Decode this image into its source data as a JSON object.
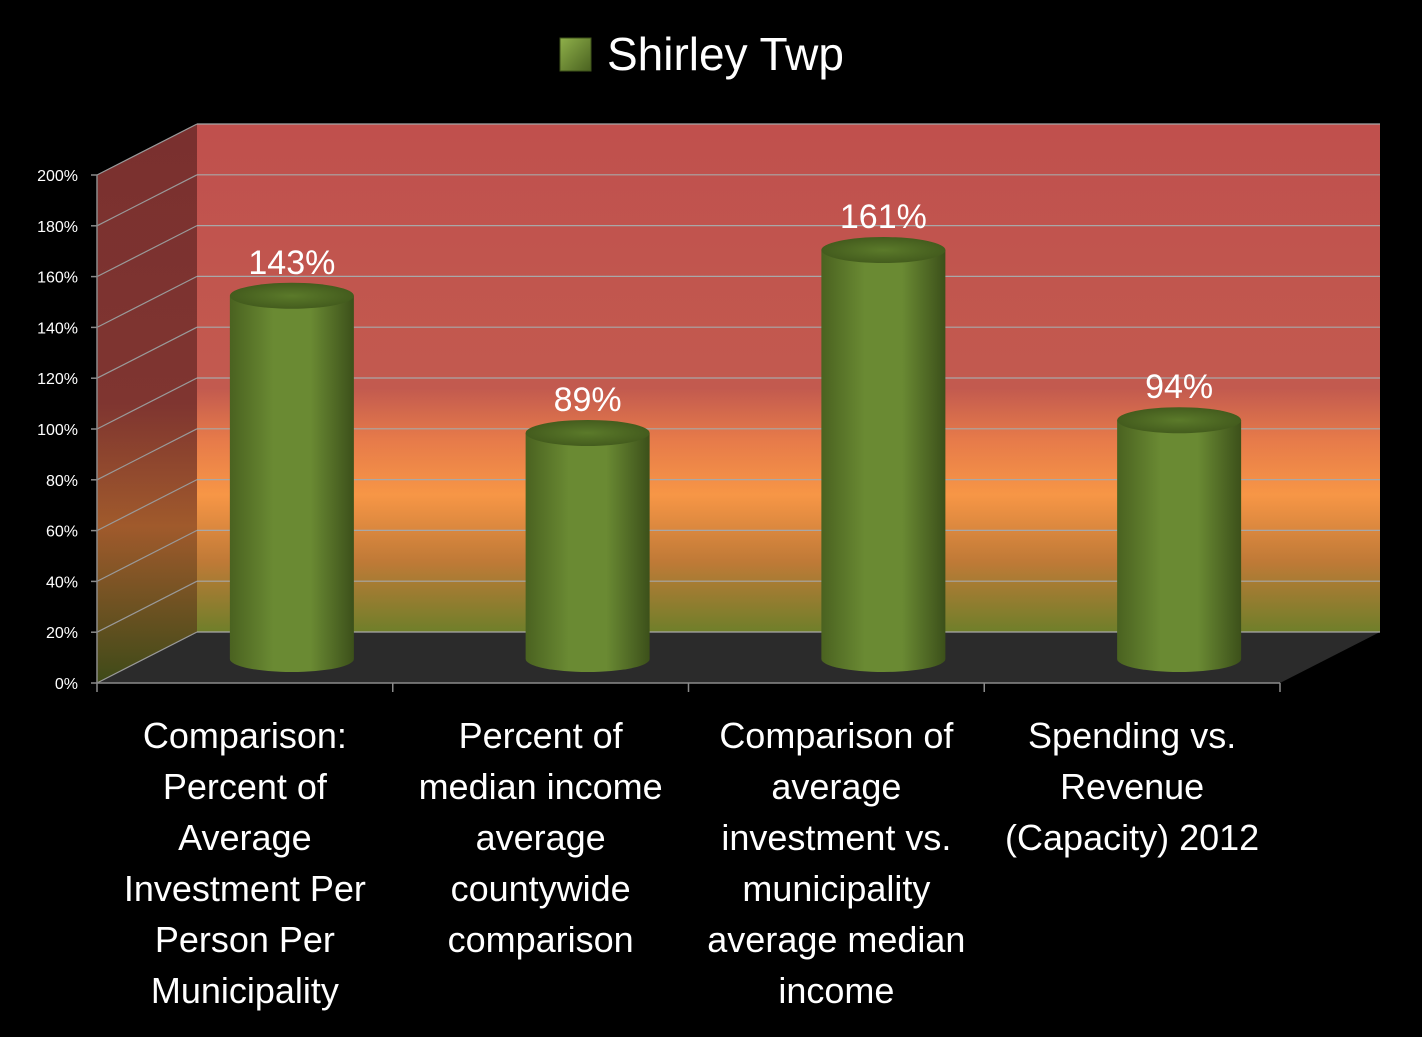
{
  "chart_data": {
    "type": "bar",
    "title": "",
    "xlabel": "",
    "ylabel": "",
    "categories": [
      "Comparison: Percent of Average Investment Per Person Per Municipality",
      "Percent of median income average countywide comparison",
      "Comparison of average investment vs. municipality average median income",
      "Spending vs. Revenue (Capacity) 2012"
    ],
    "category_lines": [
      [
        "Comparison:",
        "Percent of",
        "Average",
        "Investment Per",
        "Person Per",
        "Municipality"
      ],
      [
        "Percent of",
        "median income",
        "average",
        "countywide",
        "comparison"
      ],
      [
        "Comparison of",
        "average",
        "investment vs.",
        "municipality",
        "average median",
        "income"
      ],
      [
        "Spending vs.",
        "Revenue",
        "(Capacity) 2012"
      ]
    ],
    "series": [
      {
        "name": "Shirley Twp",
        "values": [
          143,
          89,
          161,
          94
        ],
        "color": "#6a8a33"
      }
    ],
    "data_labels": [
      "143%",
      "89%",
      "161%",
      "94%"
    ],
    "ylim": [
      0,
      200
    ],
    "yticks": [
      0,
      20,
      40,
      60,
      80,
      100,
      120,
      140,
      160,
      180,
      200
    ],
    "ytick_labels": [
      "0%",
      "20%",
      "40%",
      "60%",
      "80%",
      "100%",
      "120%",
      "140%",
      "160%",
      "180%",
      "200%"
    ],
    "legend": "top-center",
    "grid": true,
    "style": "3d-cylinder",
    "colors": {
      "background": "#000000",
      "wall_top": "#c0504d",
      "wall_mid": "#f79646",
      "wall_bottom": "#6f7f2a",
      "floor": "#2a2a2a",
      "text": "#ffffff"
    }
  }
}
